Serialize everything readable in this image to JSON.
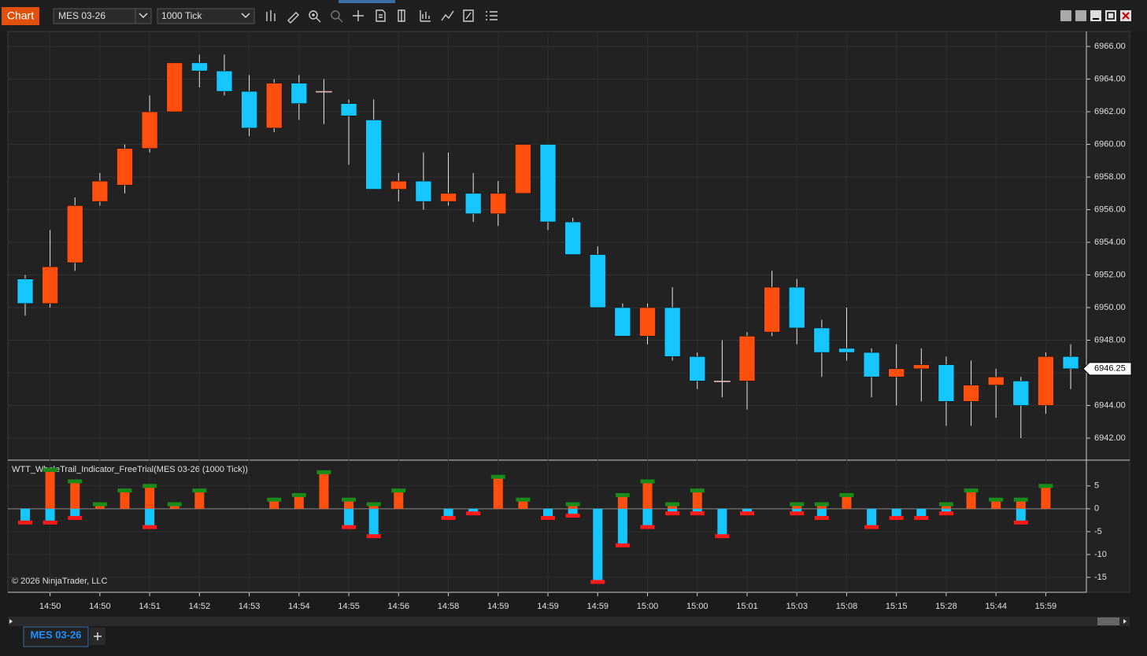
{
  "toolbar": {
    "tab": "Chart",
    "instrument": "MES 03-26",
    "interval": "1000 Tick"
  },
  "tabs": {
    "active": "MES 03-26"
  },
  "chart_data": [
    {
      "type": "candlestick",
      "categories": [
        null,
        "14:50",
        null,
        "14:50",
        null,
        "14:51",
        null,
        "14:52",
        null,
        "14:53",
        null,
        "14:54",
        null,
        "14:55",
        null,
        "14:56",
        null,
        "14:58",
        null,
        "14:59",
        null,
        "14:59",
        null,
        "14:59",
        null,
        "15:00",
        null,
        "15:00",
        null,
        "15:01",
        null,
        "15:03",
        null,
        "15:08",
        null,
        "15:15",
        null,
        "15:28",
        null,
        "15:44",
        null,
        "15:59",
        null
      ],
      "open": [
        6951.75,
        6950.25,
        6952.75,
        6956.5,
        6957.5,
        6959.75,
        6962,
        6965,
        6964.5,
        6963.25,
        6961,
        6963.75,
        6963.25,
        6962.5,
        6961.5,
        6957.25,
        6957.75,
        6956.5,
        6957,
        6955.75,
        6957,
        6960,
        6955.25,
        6953.25,
        6950,
        6948.25,
        6950,
        6947,
        6945.5,
        6945.5,
        6948.5,
        6951.25,
        6948.75,
        6947.5,
        6947.25,
        6945.75,
        6946.25,
        6946.5,
        6944.25,
        6945.25,
        6945.5,
        6944,
        6947
      ],
      "high": [
        6952,
        6954.75,
        6956.75,
        6958.25,
        6960,
        6963,
        6965,
        6965.5,
        6965.5,
        6964.25,
        6964,
        6964.25,
        6964,
        6962.75,
        6962.75,
        6958.25,
        6959.5,
        6959.5,
        6958.25,
        6957.75,
        6960,
        6960,
        6955.5,
        6953.75,
        6950.25,
        6950.25,
        6951.25,
        6947.25,
        6948,
        6948.5,
        6952.25,
        6951.75,
        6949.25,
        6950,
        6947.5,
        6947.75,
        6947.5,
        6947,
        6946.75,
        6946.25,
        6945.75,
        6947.25,
        6947.75
      ],
      "low": [
        6949.5,
        6950,
        6952.25,
        6956.25,
        6957,
        6959.5,
        6962,
        6963.5,
        6963,
        6960.5,
        6960.75,
        6961.5,
        6961.25,
        6958.75,
        6957.25,
        6956.5,
        6956,
        6956.25,
        6955.25,
        6955,
        6957,
        6954.75,
        6953.25,
        6950,
        6948.25,
        6947.75,
        6946.75,
        6945,
        6944.5,
        6943.75,
        6948.25,
        6947.75,
        6945.75,
        6946.75,
        6944.5,
        6944,
        6944.25,
        6942.75,
        6942.75,
        6943.25,
        6942,
        6943.5,
        6945
      ],
      "close": [
        6950.25,
        6952.5,
        6956.25,
        6957.75,
        6959.75,
        6962,
        6965,
        6964.5,
        6963.25,
        6961,
        6963.75,
        6962.5,
        6963.25,
        6961.75,
        6957.25,
        6957.75,
        6956.5,
        6957,
        6955.75,
        6957,
        6960,
        6955.25,
        6953.25,
        6950,
        6948.25,
        6950,
        6947,
        6945.5,
        6945.5,
        6948.25,
        6951.25,
        6948.75,
        6947.25,
        6947.25,
        6945.75,
        6946.25,
        6946.5,
        6944.25,
        6945.25,
        6945.75,
        6944,
        6947,
        6946.25
      ],
      "up_color": "#ff4f0f",
      "down_color": "#16c6ff",
      "ylim": [
        6940.65,
        6966.92
      ],
      "yticks": [
        {
          "value": 6942,
          "label": "6942.00"
        },
        {
          "value": 6944,
          "label": "6944.00"
        },
        {
          "value": 6946,
          "label": "6946.00"
        },
        {
          "value": 6948,
          "label": "6948.00"
        },
        {
          "value": 6950,
          "label": "6950.00"
        },
        {
          "value": 6952,
          "label": "6952.00"
        },
        {
          "value": 6954,
          "label": "6954.00"
        },
        {
          "value": 6956,
          "label": "6956.00"
        },
        {
          "value": 6958,
          "label": "6958.00"
        },
        {
          "value": 6960,
          "label": "6960.00"
        },
        {
          "value": 6962,
          "label": "6962.00"
        },
        {
          "value": 6964,
          "label": "6964.00"
        },
        {
          "value": 6966,
          "label": "6966.00"
        }
      ],
      "last_price": {
        "value": 6946.25,
        "label": "6946.25"
      },
      "grid": true
    },
    {
      "type": "bar",
      "title": "WTT_WhaleTrail_Indicator_FreeTrial(MES 03-26 (1000 Tick))",
      "annotation": "© 2026 NinjaTrader, LLC",
      "series": [
        {
          "color": "#ff4f0f",
          "marker_color": "#1a8c1a",
          "values": [
            0,
            8.5,
            6,
            1,
            4,
            5,
            1,
            4,
            0,
            0,
            2,
            3,
            8,
            2,
            1,
            4,
            0,
            0,
            0,
            7,
            2,
            0,
            1,
            0,
            3,
            6,
            1,
            4,
            0,
            0,
            0,
            1,
            1,
            3,
            0,
            0,
            0,
            1,
            4,
            2,
            2,
            5,
            0
          ]
        },
        {
          "color": "#16c6ff",
          "marker_color": "#ff1a1a",
          "values": [
            -3,
            -3,
            -2,
            0,
            0,
            -4,
            0,
            0,
            0,
            0,
            0,
            0,
            0,
            -4,
            -6,
            0,
            0,
            -2,
            -1,
            0,
            0,
            -2,
            -1.5,
            -16,
            -8,
            -4,
            -1,
            -1,
            -6,
            -1,
            0,
            -1,
            -2,
            0,
            -4,
            -2,
            -2,
            -1,
            0,
            0,
            -3,
            0,
            0
          ]
        }
      ],
      "ylim": [
        -18.1,
        10.3
      ],
      "yticks": [
        -15,
        -10,
        -5,
        0,
        5
      ],
      "grid": true
    }
  ]
}
